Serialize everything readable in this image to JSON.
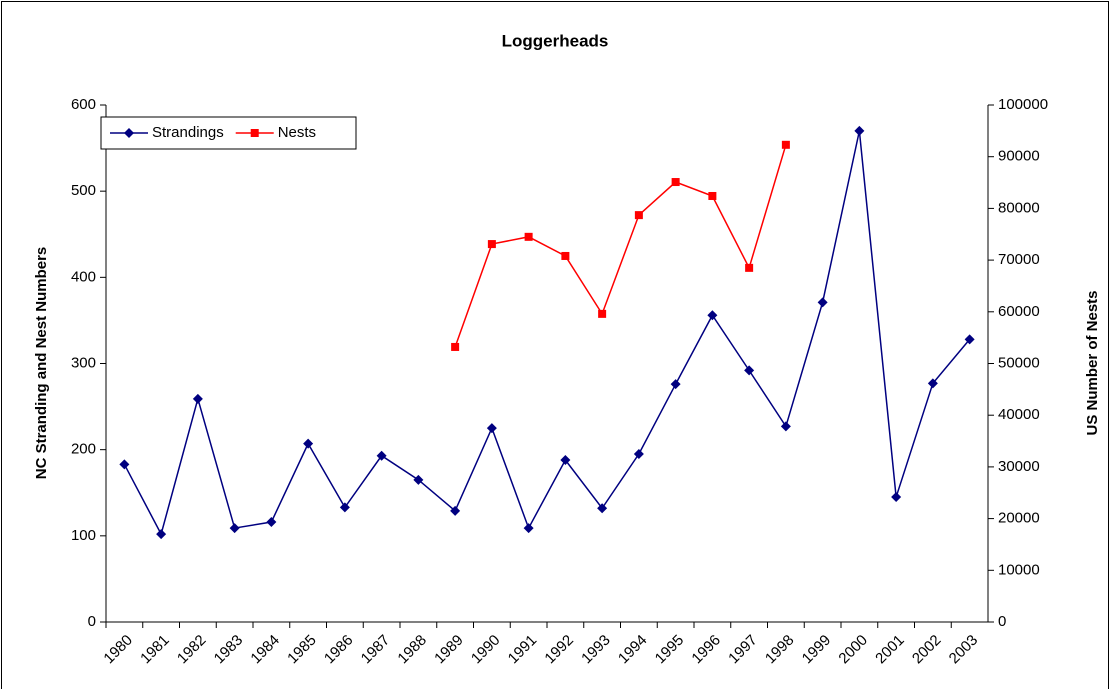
{
  "chart_data": {
    "type": "line",
    "title": "Loggerheads",
    "y_label": "NC Stranding and Nest Numbers",
    "y2_label": "US Number of Nests",
    "categories": [
      "1980",
      "1981",
      "1982",
      "1983",
      "1984",
      "1985",
      "1986",
      "1987",
      "1988",
      "1989",
      "1990",
      "1991",
      "1992",
      "1993",
      "1994",
      "1995",
      "1996",
      "1997",
      "1998",
      "1999",
      "2000",
      "2001",
      "2002",
      "2003"
    ],
    "series": [
      {
        "name": "Strandings",
        "color": "#000080",
        "marker": "diamond",
        "values": [
          183,
          102,
          259,
          109,
          116,
          207,
          133,
          193,
          165,
          129,
          225,
          109,
          188,
          132,
          195,
          276,
          356,
          292,
          227,
          371,
          570,
          145,
          277,
          328
        ]
      },
      {
        "name": "Nests",
        "color": "#ff0000",
        "marker": "square",
        "axis": "y2",
        "values": [
          null,
          null,
          null,
          null,
          null,
          null,
          null,
          null,
          null,
          53200,
          73100,
          74500,
          70800,
          59600,
          78700,
          85100,
          82400,
          68500,
          92300,
          null,
          null,
          null,
          null,
          null
        ]
      }
    ],
    "ylim": [
      0,
      600
    ],
    "yticks": [
      0,
      100,
      200,
      300,
      400,
      500,
      600
    ],
    "y2lim": [
      0,
      100000
    ],
    "y2ticks": [
      0,
      10000,
      20000,
      30000,
      40000,
      50000,
      60000,
      70000,
      80000,
      90000,
      100000
    ],
    "legend": "top-left"
  }
}
